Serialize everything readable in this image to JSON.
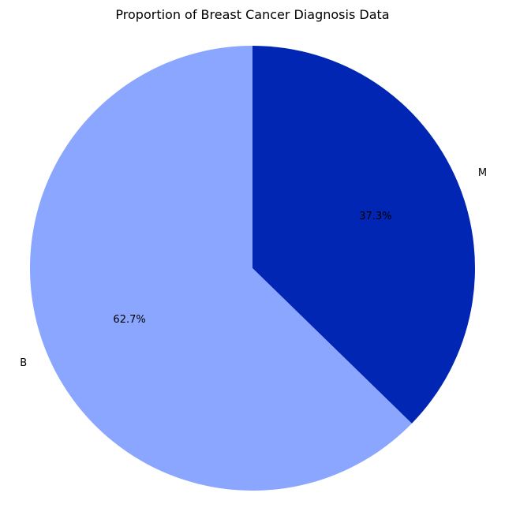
{
  "chart_data": {
    "type": "pie",
    "title": "Proportion of Breast Cancer Diagnosis Data",
    "slices": [
      {
        "label": "M",
        "value": 37.3,
        "pct_text": "37.3%",
        "color": "#0026b3"
      },
      {
        "label": "B",
        "value": 62.7,
        "pct_text": "62.7%",
        "color": "#8ba6ff"
      }
    ],
    "start_angle_deg": 90,
    "direction": "clockwise"
  }
}
